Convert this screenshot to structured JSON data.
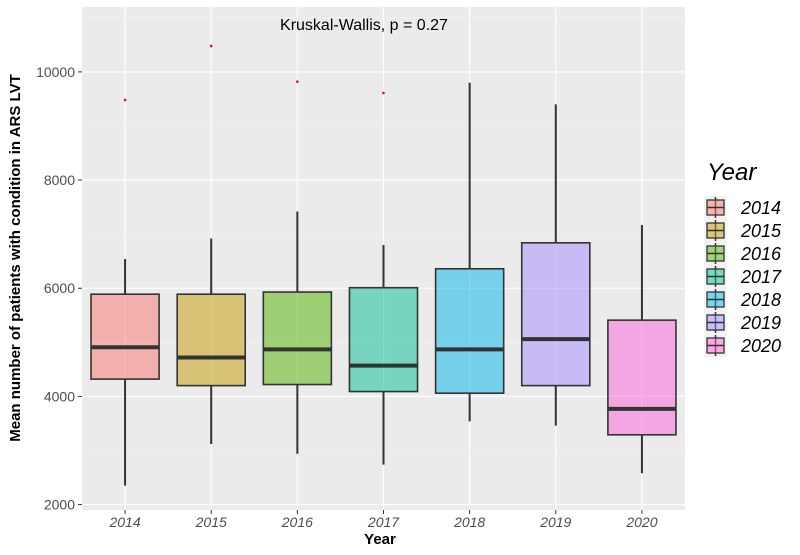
{
  "chart_data": {
    "type": "boxplot",
    "title": "",
    "annotation": "Kruskal-Wallis, p = 0.27",
    "xlabel": "Year",
    "ylabel": "Mean number of patients with condition in ARS LVT",
    "ylim": [
      1900,
      11200
    ],
    "yticks": [
      2000,
      4000,
      6000,
      8000,
      10000
    ],
    "yticks_labels": [
      "2000",
      "4000",
      "6000",
      "8000",
      "10000"
    ],
    "legend": {
      "title": "Year",
      "position": "right"
    },
    "categories": [
      "2014",
      "2015",
      "2016",
      "2017",
      "2018",
      "2019",
      "2020"
    ],
    "colors": [
      "#F8766D",
      "#C49A00",
      "#53B400",
      "#00C094",
      "#00B6EB",
      "#A58AFF",
      "#FB61D7"
    ],
    "boxes": [
      {
        "year": "2014",
        "min": 2350,
        "q1": 4320,
        "median": 4910,
        "q3": 5890,
        "max": 6540,
        "outliers": [
          9480
        ]
      },
      {
        "year": "2015",
        "min": 3120,
        "q1": 4200,
        "median": 4720,
        "q3": 5890,
        "max": 6920,
        "outliers": [
          10480
        ]
      },
      {
        "year": "2016",
        "min": 2940,
        "q1": 4220,
        "median": 4870,
        "q3": 5930,
        "max": 7420,
        "outliers": [
          9820
        ]
      },
      {
        "year": "2017",
        "min": 2740,
        "q1": 4090,
        "median": 4570,
        "q3": 6010,
        "max": 6800,
        "outliers": [
          9610
        ]
      },
      {
        "year": "2018",
        "min": 3540,
        "q1": 4060,
        "median": 4870,
        "q3": 6360,
        "max": 9800,
        "outliers": []
      },
      {
        "year": "2019",
        "min": 3460,
        "q1": 4200,
        "median": 5060,
        "q3": 6840,
        "max": 9400,
        "outliers": []
      },
      {
        "year": "2020",
        "min": 2580,
        "q1": 3290,
        "median": 3770,
        "q3": 5410,
        "max": 7170,
        "outliers": []
      }
    ]
  }
}
